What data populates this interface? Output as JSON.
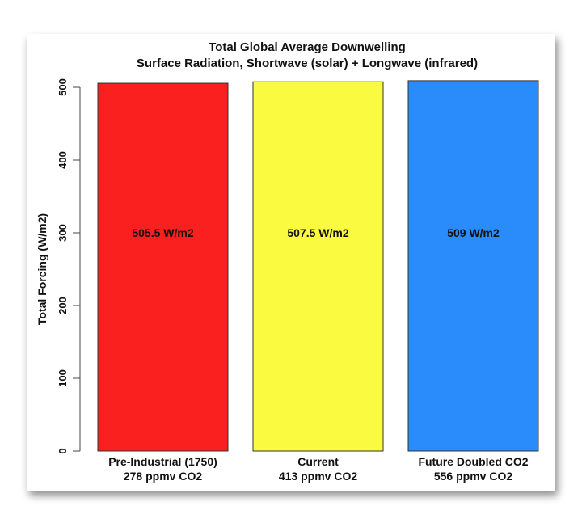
{
  "chart_data": {
    "type": "bar",
    "title": [
      "Total Global Average Downwelling",
      "Surface Radiation, Shortwave (solar) + Longwave (infrared)"
    ],
    "xlabel": "",
    "ylabel": "Total Forcing (W/m2)",
    "ylim": [
      0,
      500
    ],
    "yticks": [
      0,
      100,
      200,
      300,
      400,
      500
    ],
    "categories": [
      [
        "Pre-Industrial (1750)",
        "278 ppmv CO2"
      ],
      [
        "Current",
        "413 ppmv CO2"
      ],
      [
        "Future Doubled CO2",
        "556 ppmv CO2"
      ]
    ],
    "values": [
      505.5,
      507.5,
      509
    ],
    "data_labels": [
      "505.5 W/m2",
      "507.5 W/m2",
      "509 W/m2"
    ],
    "colors": [
      "#fa2020",
      "#fafa40",
      "#2a8cfa"
    ],
    "grid": false,
    "legend": "none"
  }
}
